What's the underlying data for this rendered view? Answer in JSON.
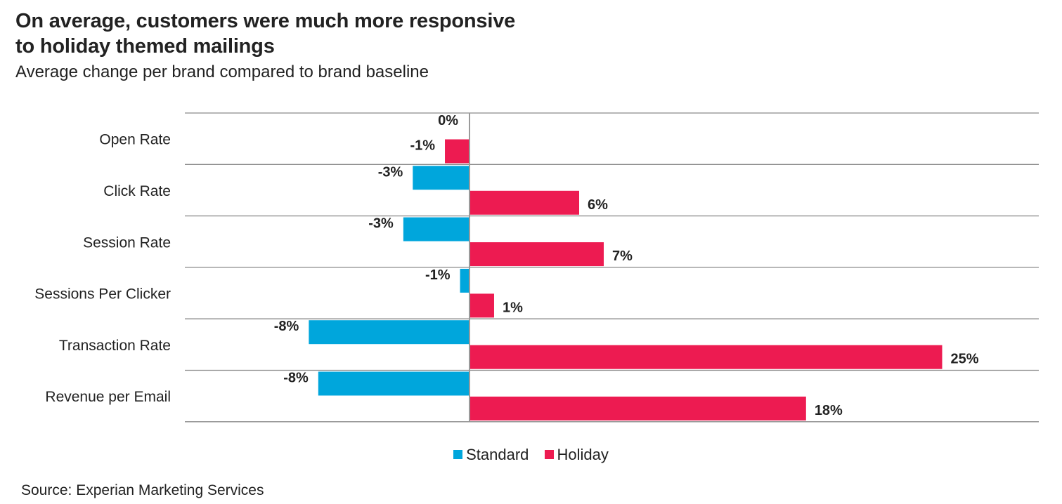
{
  "title_lines": [
    "On average, customers were much more responsive",
    "to holiday themed mailings"
  ],
  "subtitle": "Average change per brand compared to brand baseline",
  "source": "Source: Experian Marketing Services",
  "colors": {
    "standard": "#00A6DC",
    "holiday": "#ED1B51",
    "gridline": "#8a8a8a",
    "axis": "#9a9a9a"
  },
  "chart_data": {
    "type": "bar",
    "orientation": "horizontal",
    "categories": [
      "Open Rate",
      "Click Rate",
      "Session Rate",
      "Sessions Per Clicker",
      "Transaction Rate",
      "Revenue per Email"
    ],
    "series": [
      {
        "name": "Standard",
        "values": [
          0,
          -3,
          -3.5,
          -0.5,
          -8.5,
          -8
        ],
        "labels": [
          "0%",
          "-3%",
          "-3%",
          "-1%",
          "-8%",
          "-8%"
        ]
      },
      {
        "name": "Holiday",
        "values": [
          -1.3,
          5.8,
          7.1,
          1.3,
          25,
          17.8
        ],
        "labels": [
          "-1%",
          "6%",
          "7%",
          "1%",
          "25%",
          "18%"
        ]
      }
    ],
    "xlim": [
      -15,
      30
    ],
    "grid": true,
    "legend_position": "bottom"
  }
}
